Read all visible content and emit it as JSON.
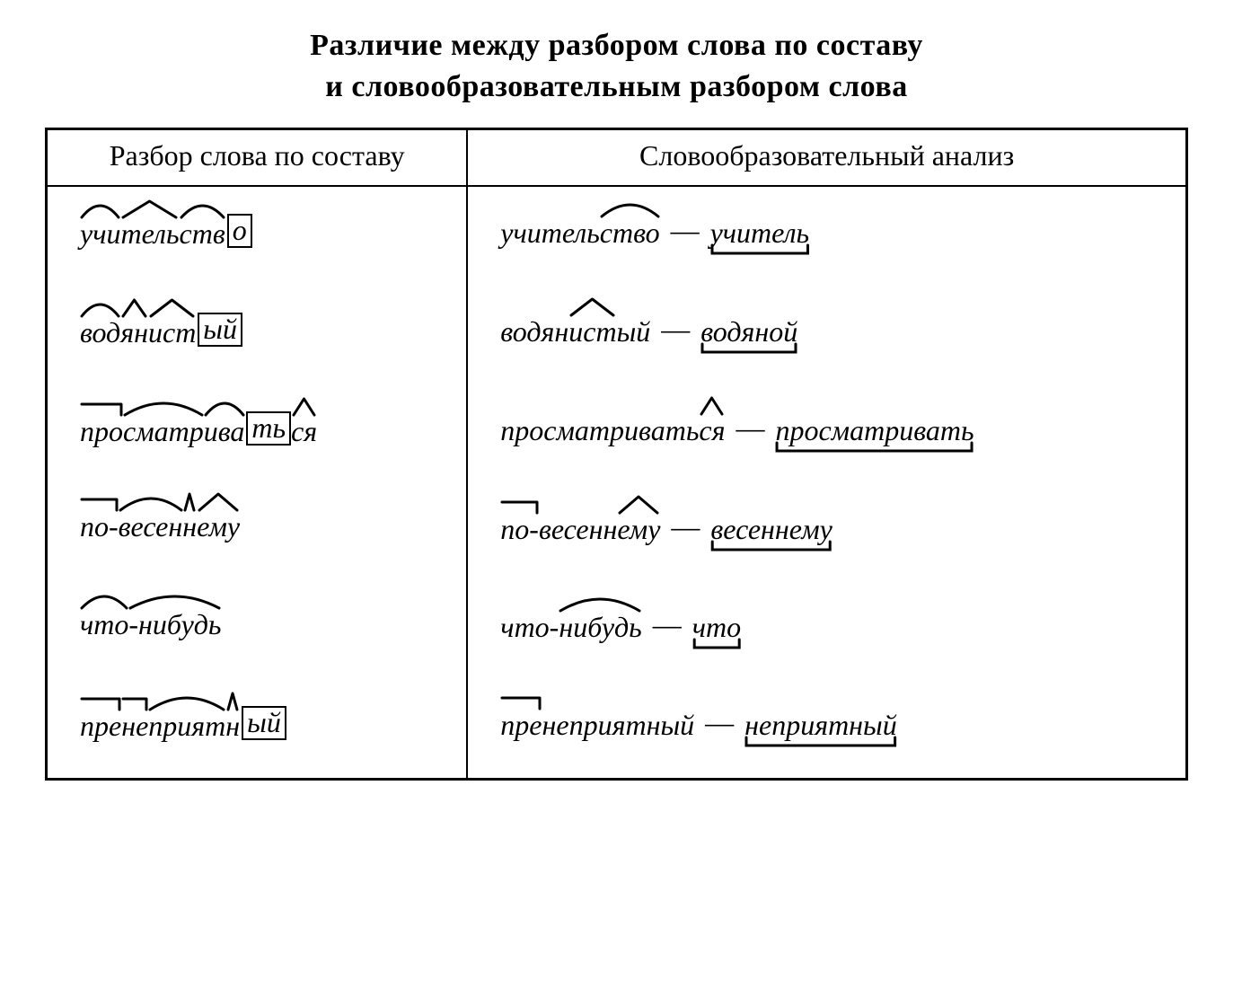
{
  "title_line1": "Различие между разбором слова по составу",
  "title_line2": "и словообразовательным разбором слова",
  "headers": {
    "left": "Разбор слова по составу",
    "right": "Словообразовательный анализ"
  },
  "rows": [
    {
      "left": [
        {
          "text": "учи",
          "mark": "arc"
        },
        {
          "text": "тель",
          "mark": "caret"
        },
        {
          "text": "ств",
          "mark": "arc"
        },
        {
          "text": "о",
          "mark": "box"
        }
      ],
      "right": {
        "derived": [
          {
            "text": "учитель",
            "mark": "none"
          },
          {
            "text": "ство",
            "mark": "arc"
          }
        ],
        "base": "учитель"
      }
    },
    {
      "left": [
        {
          "text": "вод",
          "mark": "arc"
        },
        {
          "text": "ян",
          "mark": "caret"
        },
        {
          "text": "ист",
          "mark": "caret"
        },
        {
          "text": "ый",
          "mark": "box"
        }
      ],
      "right": {
        "derived": [
          {
            "text": "водян",
            "mark": "none"
          },
          {
            "text": "ист",
            "mark": "caret"
          },
          {
            "text": "ый",
            "mark": "none"
          }
        ],
        "base": "водяной"
      }
    },
    {
      "left": [
        {
          "text": "про",
          "mark": "prefix"
        },
        {
          "text": "сматр",
          "mark": "arc"
        },
        {
          "text": "ива",
          "mark": "arc"
        },
        {
          "text": "ть",
          "mark": "box"
        },
        {
          "text": "ся",
          "mark": "caret"
        }
      ],
      "right": {
        "derived": [
          {
            "text": "просматривать",
            "mark": "none"
          },
          {
            "text": "ся",
            "mark": "caret"
          }
        ],
        "base": "просматривать"
      }
    },
    {
      "left": [
        {
          "text": "по-",
          "mark": "prefix"
        },
        {
          "text": "весен",
          "mark": "arc"
        },
        {
          "text": "н",
          "mark": "caret"
        },
        {
          "text": "ему",
          "mark": "caret"
        }
      ],
      "right": {
        "derived": [
          {
            "text": "по-",
            "mark": "prefix"
          },
          {
            "text": "весенн",
            "mark": "none"
          },
          {
            "text": "ему",
            "mark": "caret"
          }
        ],
        "base": "весеннему"
      }
    },
    {
      "left": [
        {
          "text": "что",
          "mark": "arc"
        },
        {
          "text": "-нибудь",
          "mark": "arc"
        }
      ],
      "right": {
        "derived": [
          {
            "text": "что-",
            "mark": "none"
          },
          {
            "text": "нибудь",
            "mark": "arc"
          }
        ],
        "base": "что"
      }
    },
    {
      "left": [
        {
          "text": "пре",
          "mark": "prefix"
        },
        {
          "text": "не",
          "mark": "prefix"
        },
        {
          "text": "прият",
          "mark": "arc"
        },
        {
          "text": "н",
          "mark": "caret"
        },
        {
          "text": "ый",
          "mark": "box"
        }
      ],
      "right": {
        "derived": [
          {
            "text": "пре",
            "mark": "prefix"
          },
          {
            "text": "неприятный",
            "mark": "none"
          }
        ],
        "base": "неприятный"
      }
    }
  ],
  "style": {
    "stroke": "#000000",
    "strokeWidth": 3,
    "fontFamily": "Georgia, 'Times New Roman', serif"
  }
}
